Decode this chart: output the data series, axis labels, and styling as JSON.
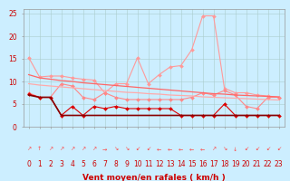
{
  "background_color": "#cceeff",
  "grid_color": "#aacccc",
  "xlabel": "Vent moyen/en rafales ( km/h )",
  "x_ticks": [
    0,
    1,
    2,
    3,
    4,
    5,
    6,
    7,
    8,
    9,
    10,
    11,
    12,
    13,
    14,
    15,
    16,
    17,
    18,
    19,
    20,
    21,
    22,
    23
  ],
  "ylim": [
    0,
    26
  ],
  "y_ticks": [
    0,
    5,
    10,
    15,
    20,
    25
  ],
  "series": [
    {
      "name": "rafales_light",
      "color": "#ff9999",
      "linewidth": 0.8,
      "marker": "D",
      "markersize": 2.0,
      "values": [
        15.3,
        11.0,
        11.2,
        11.2,
        10.8,
        10.5,
        10.3,
        7.5,
        9.5,
        9.5,
        15.2,
        9.5,
        11.5,
        13.2,
        13.5,
        17.0,
        24.5,
        24.5,
        8.5,
        7.5,
        7.5,
        7.0,
        6.8,
        6.5
      ]
    },
    {
      "name": "moyen_med",
      "color": "#ff8888",
      "linewidth": 0.8,
      "marker": "D",
      "markersize": 2.0,
      "values": [
        7.5,
        6.5,
        6.5,
        9.5,
        9.0,
        6.5,
        6.0,
        7.5,
        6.5,
        6.0,
        6.0,
        6.0,
        6.0,
        6.0,
        6.0,
        6.5,
        7.5,
        7.0,
        8.0,
        7.0,
        4.5,
        4.0,
        6.5,
        6.5
      ]
    },
    {
      "name": "line_dark_markers",
      "color": "#dd0000",
      "linewidth": 0.8,
      "marker": "D",
      "markersize": 2.0,
      "values": [
        7.2,
        6.5,
        6.5,
        2.5,
        4.5,
        2.5,
        4.5,
        4.0,
        4.5,
        4.0,
        4.0,
        4.0,
        4.0,
        4.0,
        2.5,
        2.5,
        2.5,
        2.5,
        5.0,
        2.5,
        2.5,
        2.5,
        2.5,
        2.5
      ]
    },
    {
      "name": "flat_dark",
      "color": "#880000",
      "linewidth": 1.2,
      "marker": null,
      "markersize": 0,
      "values": [
        7.0,
        6.5,
        6.5,
        2.5,
        2.5,
        2.5,
        2.5,
        2.5,
        2.5,
        2.5,
        2.5,
        2.5,
        2.5,
        2.5,
        2.5,
        2.5,
        2.5,
        2.5,
        2.5,
        2.5,
        2.5,
        2.5,
        2.5,
        2.5
      ]
    },
    {
      "name": "trend_medium",
      "color": "#ff6666",
      "linewidth": 0.9,
      "marker": null,
      "markersize": 0,
      "values": [
        11.5,
        10.8,
        10.5,
        10.2,
        10.0,
        9.7,
        9.5,
        9.3,
        9.1,
        8.9,
        8.7,
        8.5,
        8.3,
        8.1,
        7.9,
        7.7,
        7.5,
        7.3,
        7.2,
        7.0,
        6.9,
        6.8,
        6.7,
        6.6
      ]
    },
    {
      "name": "trend_light",
      "color": "#ffaaaa",
      "linewidth": 0.9,
      "marker": null,
      "markersize": 0,
      "values": [
        9.5,
        9.2,
        9.0,
        8.8,
        8.6,
        8.4,
        8.2,
        8.0,
        7.8,
        7.6,
        7.5,
        7.3,
        7.2,
        7.0,
        6.9,
        6.8,
        6.6,
        6.5,
        6.4,
        6.3,
        6.2,
        6.1,
        6.0,
        5.9
      ]
    }
  ],
  "arrow_symbols": [
    "↗",
    "↑",
    "↗",
    "↗",
    "↗",
    "↗",
    "↗",
    "→",
    "↘",
    "↘",
    "↙",
    "↙",
    "←",
    "←",
    "←",
    "←",
    "←",
    "↗",
    "↘",
    "↓",
    "↙",
    "↙",
    "↙",
    "↙"
  ],
  "arrow_color": "#ff4444",
  "xlabel_fontsize": 6.5,
  "tick_fontsize": 5.5,
  "arrow_fontsize": 4.5
}
